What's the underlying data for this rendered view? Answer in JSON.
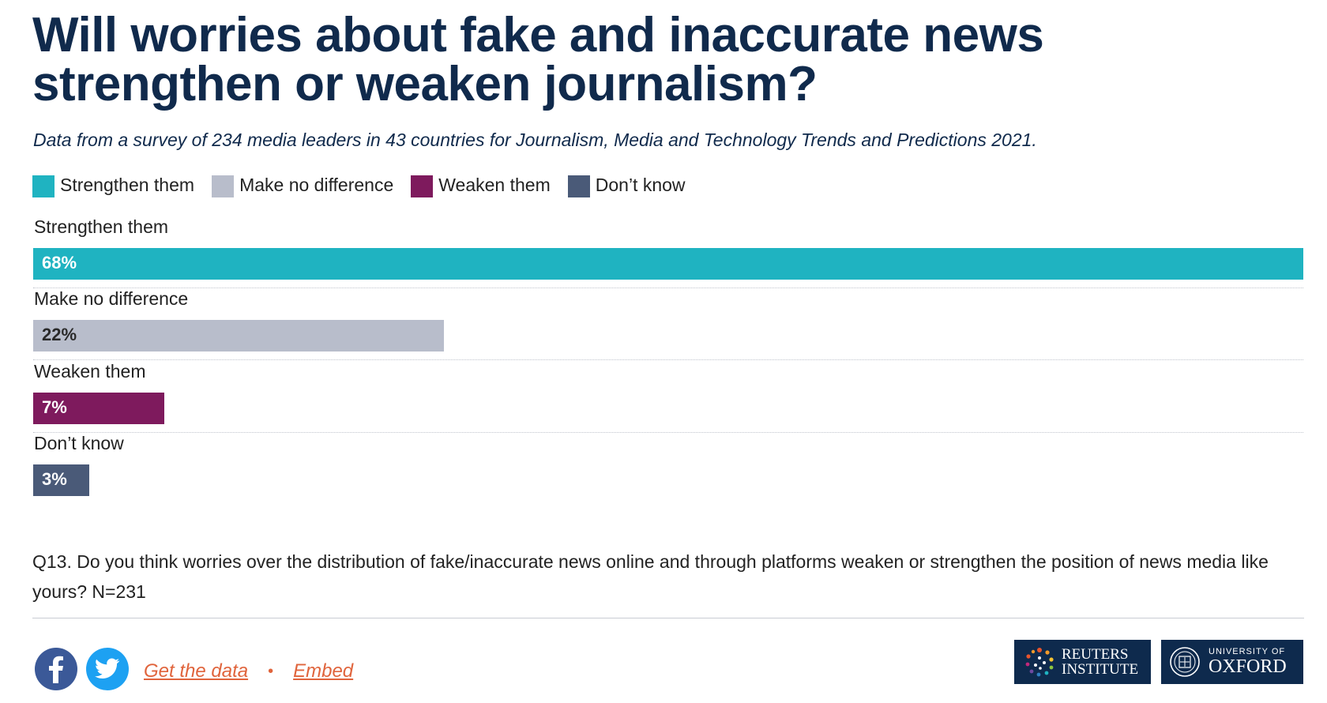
{
  "title": "Will worries about fake and inaccurate news strengthen or weaken journalism?",
  "subtitle": "Data from a survey of 234 media leaders in 43 countries for Journalism, Media and Technology Trends and Predictions 2021.",
  "legend": [
    {
      "label": "Strengthen them",
      "color": "#1fb3c1"
    },
    {
      "label": "Make no difference",
      "color": "#b8bdcb"
    },
    {
      "label": "Weaken them",
      "color": "#7e1a5d"
    },
    {
      "label": "Don’t know",
      "color": "#4a5a78"
    }
  ],
  "chart_data": {
    "type": "bar",
    "orientation": "horizontal",
    "categories": [
      "Strengthen them",
      "Make no difference",
      "Weaken them",
      "Don’t know"
    ],
    "values": [
      68,
      22,
      7,
      3
    ],
    "value_labels": [
      "68%",
      "22%",
      "7%",
      "3%"
    ],
    "colors": [
      "#1fb3c1",
      "#b8bdcb",
      "#7e1a5d",
      "#4a5a78"
    ],
    "label_colors": [
      "#ffffff",
      "#2a2a2a",
      "#ffffff",
      "#ffffff"
    ],
    "unit": "%",
    "xlim": [
      0,
      68
    ],
    "grid": false,
    "legend_position": "top-left"
  },
  "note": "Q13. Do you think worries over the distribution of fake/inaccurate news online and through platforms weaken or strengthen the position of news media like yours? N=231",
  "footer": {
    "get_data": "Get the data",
    "separator": "•",
    "embed": "Embed",
    "share_icons": [
      "facebook-icon",
      "twitter-icon"
    ],
    "reuters_line1": "REUTERS",
    "reuters_line2": "INSTITUTE",
    "oxford_line1": "UNIVERSITY OF",
    "oxford_line2": "OXFORD"
  }
}
